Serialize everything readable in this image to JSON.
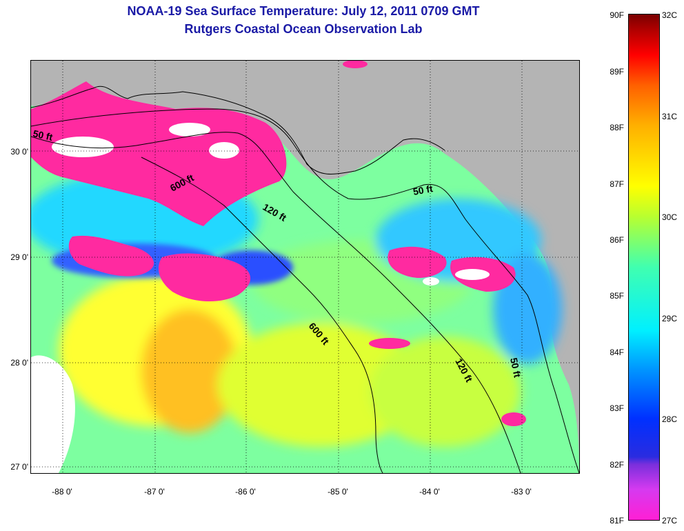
{
  "title": {
    "line1": "NOAA-19 Sea Surface Temperature:  July 12, 2011 0709 GMT",
    "line2": "Rutgers Coastal Ocean Observation Lab"
  },
  "map": {
    "lat_labels": [
      "30 0'",
      "29 0'",
      "28 0'",
      "27 0'"
    ],
    "lon_labels": [
      "-88 0'",
      "-87 0'",
      "-86 0'",
      "-85 0'",
      "-84 0'",
      "-83 0'"
    ],
    "contour_labels": [
      "50 ft",
      "600 ft",
      "120 ft",
      "50 ft",
      "600 ft",
      "120 ft",
      "50 ft"
    ],
    "colors": {
      "land": "#b4b4b4",
      "cloud": "#ffffff",
      "ocean_warm": "#e8ff40",
      "ocean_mid": "#40ffb0",
      "ocean_cool": "#00c8ff",
      "coastal_cold": "#ff2aa0"
    }
  },
  "colorbar": {
    "fahrenheit_labels": [
      "90F",
      "89F",
      "88F",
      "87F",
      "86F",
      "85F",
      "84F",
      "83F",
      "82F",
      "81F"
    ],
    "celsius_labels": [
      "32C",
      "31C",
      "30C",
      "29C",
      "28C",
      "27C"
    ]
  }
}
